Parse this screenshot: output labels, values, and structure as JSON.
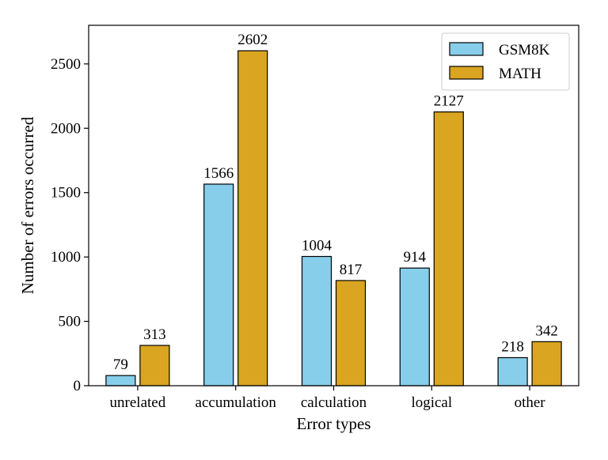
{
  "chart_data": {
    "type": "bar",
    "title": "",
    "xlabel": "Error types",
    "ylabel": "Number of errors occurred",
    "categories": [
      "unrelated",
      "accumulation",
      "calculation",
      "logical",
      "other"
    ],
    "series": [
      {
        "name": "GSM8K",
        "values": [
          79,
          1566,
          1004,
          914,
          218
        ],
        "color": "#87ceeb"
      },
      {
        "name": "MATH",
        "values": [
          313,
          2602,
          817,
          2127,
          342
        ],
        "color": "#daa520"
      }
    ],
    "ylim": [
      0,
      2800
    ],
    "yticks": [
      0,
      500,
      1000,
      1500,
      2000,
      2500
    ],
    "grid": false,
    "legend_position": "top-right",
    "data_labels": true
  }
}
